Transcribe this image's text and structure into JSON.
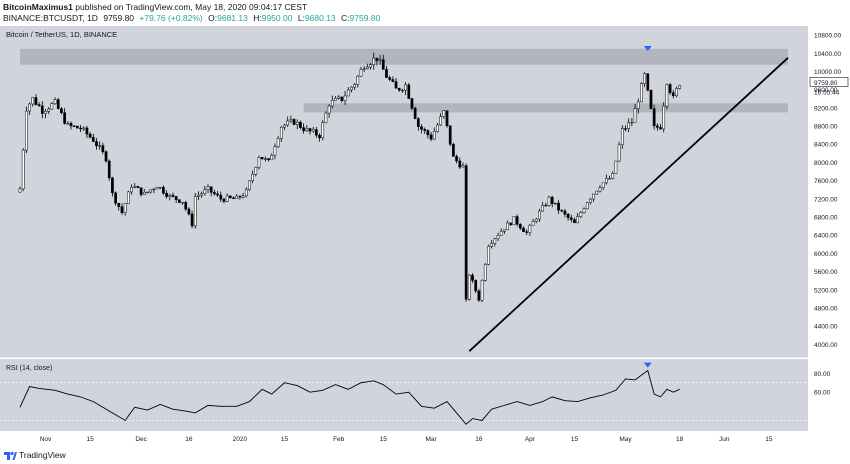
{
  "header": {
    "author": "BitcoinMaximus1",
    "published_text": "published on TradingView.com, May 18, 2020 09:04:17 CEST",
    "symbol": "BINANCE:BTCUSDT, 1D",
    "last": "9759.80",
    "change": "+79.76 (+0.82%)",
    "o_label": "O:",
    "o_val": "9681.13",
    "h_label": "H:",
    "h_val": "9950.00",
    "l_label": "L:",
    "l_val": "9680.13",
    "c_label": "C:",
    "c_val": "9759.80"
  },
  "footer": {
    "brand": "TradingView"
  },
  "colors": {
    "plot_bg": "#d1d4dc",
    "candle": "#000000",
    "zone": "#b2b5be",
    "arrow": "#2962ff",
    "text": "#131722"
  },
  "chart_data": {
    "type": "candlestick",
    "title": "Bitcoin / TetherUS, 1D, BINANCE",
    "price_axis": {
      "ticks": [
        4000,
        4400,
        4800,
        5200,
        5600,
        6000,
        6400,
        6800,
        7200,
        7600,
        8000,
        8400,
        8800,
        9200,
        9600,
        10000,
        10400,
        10800
      ],
      "tick_labels": [
        "4000.00",
        "4400.00",
        "4800.00",
        "5200.00",
        "5600.00",
        "6000.00",
        "6400.00",
        "6800.00",
        "7200.00",
        "7600.00",
        "8000.00",
        "8400.00",
        "8800.00",
        "9200.00",
        "9600.00",
        "10000.00",
        "10400.00",
        "10800.00"
      ],
      "range": [
        3700,
        11000
      ]
    },
    "time_axis": {
      "start_date": "2019-10-24",
      "end_date": "2020-06-21",
      "tick_labels": [
        "Nov",
        "15",
        "Dec",
        "16",
        "2020",
        "15",
        "Feb",
        "15",
        "Mar",
        "16",
        "Apr",
        "15",
        "May",
        "18",
        "Jun",
        "15"
      ],
      "tick_dates": [
        "2019-11-01",
        "2019-11-15",
        "2019-12-01",
        "2019-12-16",
        "2020-01-01",
        "2020-01-15",
        "2020-02-01",
        "2020-02-15",
        "2020-03-01",
        "2020-03-16",
        "2020-04-01",
        "2020-04-15",
        "2020-05-01",
        "2020-05-18",
        "2020-06-01",
        "2020-06-15"
      ]
    },
    "last_price_label": "9759.80",
    "countdown_label": "16:55:44",
    "resistance_zones": [
      {
        "from_date": "2019-10-24",
        "to_date": "2020-06-21",
        "low": 10150,
        "high": 10500
      },
      {
        "from_date": "2020-01-21",
        "to_date": "2020-06-21",
        "low": 9100,
        "high": 9300
      }
    ],
    "ascending_support": {
      "from_date": "2020-03-13",
      "from_price": 3850,
      "to_date": "2020-06-21",
      "to_price": 10300
    },
    "arrows": [
      {
        "date": "2020-05-08",
        "price": 10450,
        "pane": "price"
      },
      {
        "date": "2020-05-08",
        "value": 86,
        "pane": "rsi"
      }
    ],
    "closes": [
      {
        "date": "2019-10-24",
        "close": 7420
      },
      {
        "date": "2019-10-26",
        "close": 9200
      },
      {
        "date": "2019-10-28",
        "close": 9400
      },
      {
        "date": "2019-10-31",
        "close": 9150
      },
      {
        "date": "2019-11-04",
        "close": 9300
      },
      {
        "date": "2019-11-08",
        "close": 8800
      },
      {
        "date": "2019-11-12",
        "close": 8750
      },
      {
        "date": "2019-11-16",
        "close": 8500
      },
      {
        "date": "2019-11-20",
        "close": 8100
      },
      {
        "date": "2019-11-22",
        "close": 7300
      },
      {
        "date": "2019-11-25",
        "close": 6900
      },
      {
        "date": "2019-11-28",
        "close": 7500
      },
      {
        "date": "2019-12-02",
        "close": 7300
      },
      {
        "date": "2019-12-06",
        "close": 7500
      },
      {
        "date": "2019-12-10",
        "close": 7250
      },
      {
        "date": "2019-12-14",
        "close": 7150
      },
      {
        "date": "2019-12-17",
        "close": 6650
      },
      {
        "date": "2019-12-18",
        "close": 7250
      },
      {
        "date": "2019-12-22",
        "close": 7400
      },
      {
        "date": "2019-12-26",
        "close": 7200
      },
      {
        "date": "2019-12-31",
        "close": 7200
      },
      {
        "date": "2020-01-03",
        "close": 7350
      },
      {
        "date": "2020-01-07",
        "close": 8150
      },
      {
        "date": "2020-01-10",
        "close": 8000
      },
      {
        "date": "2020-01-14",
        "close": 8800
      },
      {
        "date": "2020-01-18",
        "close": 8900
      },
      {
        "date": "2020-01-22",
        "close": 8700
      },
      {
        "date": "2020-01-26",
        "close": 8600
      },
      {
        "date": "2020-01-29",
        "close": 9300
      },
      {
        "date": "2020-02-02",
        "close": 9400
      },
      {
        "date": "2020-02-06",
        "close": 9750
      },
      {
        "date": "2020-02-09",
        "close": 10150
      },
      {
        "date": "2020-02-13",
        "close": 10300
      },
      {
        "date": "2020-02-16",
        "close": 9900
      },
      {
        "date": "2020-02-19",
        "close": 9600
      },
      {
        "date": "2020-02-22",
        "close": 9700
      },
      {
        "date": "2020-02-26",
        "close": 8800
      },
      {
        "date": "2020-03-01",
        "close": 8550
      },
      {
        "date": "2020-03-05",
        "close": 9100
      },
      {
        "date": "2020-03-08",
        "close": 8100
      },
      {
        "date": "2020-03-11",
        "close": 7900
      },
      {
        "date": "2020-03-12",
        "close": 4950
      },
      {
        "date": "2020-03-13",
        "close": 5550
      },
      {
        "date": "2020-03-16",
        "close": 5000
      },
      {
        "date": "2020-03-19",
        "close": 6200
      },
      {
        "date": "2020-03-23",
        "close": 6500
      },
      {
        "date": "2020-03-27",
        "close": 6750
      },
      {
        "date": "2020-03-31",
        "close": 6450
      },
      {
        "date": "2020-04-03",
        "close": 6800
      },
      {
        "date": "2020-04-07",
        "close": 7200
      },
      {
        "date": "2020-04-11",
        "close": 6900
      },
      {
        "date": "2020-04-15",
        "close": 6650
      },
      {
        "date": "2020-04-19",
        "close": 7150
      },
      {
        "date": "2020-04-23",
        "close": 7500
      },
      {
        "date": "2020-04-27",
        "close": 7700
      },
      {
        "date": "2020-04-30",
        "close": 8700
      },
      {
        "date": "2020-05-03",
        "close": 8900
      },
      {
        "date": "2020-05-07",
        "close": 9900
      },
      {
        "date": "2020-05-10",
        "close": 8750
      },
      {
        "date": "2020-05-12",
        "close": 8800
      },
      {
        "date": "2020-05-14",
        "close": 9800
      },
      {
        "date": "2020-05-16",
        "close": 9400
      },
      {
        "date": "2020-05-18",
        "close": 9760
      }
    ],
    "rsi": {
      "title": "RSI (14, close)",
      "ticks": [
        60,
        80
      ],
      "tick_labels": [
        "60.00",
        "80.00"
      ],
      "guide_levels": [
        70,
        30
      ],
      "values": [
        {
          "date": "2019-10-24",
          "v": 44
        },
        {
          "date": "2019-10-27",
          "v": 66
        },
        {
          "date": "2019-10-30",
          "v": 64
        },
        {
          "date": "2019-11-04",
          "v": 62
        },
        {
          "date": "2019-11-08",
          "v": 58
        },
        {
          "date": "2019-11-12",
          "v": 55
        },
        {
          "date": "2019-11-16",
          "v": 50
        },
        {
          "date": "2019-11-20",
          "v": 42
        },
        {
          "date": "2019-11-23",
          "v": 36
        },
        {
          "date": "2019-11-26",
          "v": 30
        },
        {
          "date": "2019-11-29",
          "v": 44
        },
        {
          "date": "2019-12-03",
          "v": 41
        },
        {
          "date": "2019-12-07",
          "v": 47
        },
        {
          "date": "2019-12-11",
          "v": 42
        },
        {
          "date": "2019-12-15",
          "v": 40
        },
        {
          "date": "2019-12-18",
          "v": 38
        },
        {
          "date": "2019-12-22",
          "v": 46
        },
        {
          "date": "2019-12-26",
          "v": 45
        },
        {
          "date": "2019-12-31",
          "v": 45
        },
        {
          "date": "2020-01-04",
          "v": 50
        },
        {
          "date": "2020-01-08",
          "v": 63
        },
        {
          "date": "2020-01-11",
          "v": 58
        },
        {
          "date": "2020-01-15",
          "v": 70
        },
        {
          "date": "2020-01-19",
          "v": 67
        },
        {
          "date": "2020-01-23",
          "v": 60
        },
        {
          "date": "2020-01-27",
          "v": 62
        },
        {
          "date": "2020-01-31",
          "v": 68
        },
        {
          "date": "2020-02-04",
          "v": 63
        },
        {
          "date": "2020-02-08",
          "v": 70
        },
        {
          "date": "2020-02-12",
          "v": 72
        },
        {
          "date": "2020-02-15",
          "v": 68
        },
        {
          "date": "2020-02-19",
          "v": 58
        },
        {
          "date": "2020-02-23",
          "v": 60
        },
        {
          "date": "2020-02-27",
          "v": 45
        },
        {
          "date": "2020-03-02",
          "v": 43
        },
        {
          "date": "2020-03-06",
          "v": 50
        },
        {
          "date": "2020-03-09",
          "v": 38
        },
        {
          "date": "2020-03-12",
          "v": 26
        },
        {
          "date": "2020-03-14",
          "v": 32
        },
        {
          "date": "2020-03-17",
          "v": 30
        },
        {
          "date": "2020-03-20",
          "v": 42
        },
        {
          "date": "2020-03-24",
          "v": 46
        },
        {
          "date": "2020-03-28",
          "v": 50
        },
        {
          "date": "2020-04-01",
          "v": 46
        },
        {
          "date": "2020-04-05",
          "v": 50
        },
        {
          "date": "2020-04-08",
          "v": 55
        },
        {
          "date": "2020-04-12",
          "v": 51
        },
        {
          "date": "2020-04-16",
          "v": 50
        },
        {
          "date": "2020-04-20",
          "v": 54
        },
        {
          "date": "2020-04-24",
          "v": 57
        },
        {
          "date": "2020-04-28",
          "v": 62
        },
        {
          "date": "2020-05-01",
          "v": 74
        },
        {
          "date": "2020-05-04",
          "v": 73
        },
        {
          "date": "2020-05-08",
          "v": 83
        },
        {
          "date": "2020-05-10",
          "v": 58
        },
        {
          "date": "2020-05-12",
          "v": 55
        },
        {
          "date": "2020-05-14",
          "v": 63
        },
        {
          "date": "2020-05-16",
          "v": 60
        },
        {
          "date": "2020-05-18",
          "v": 63
        }
      ]
    }
  }
}
